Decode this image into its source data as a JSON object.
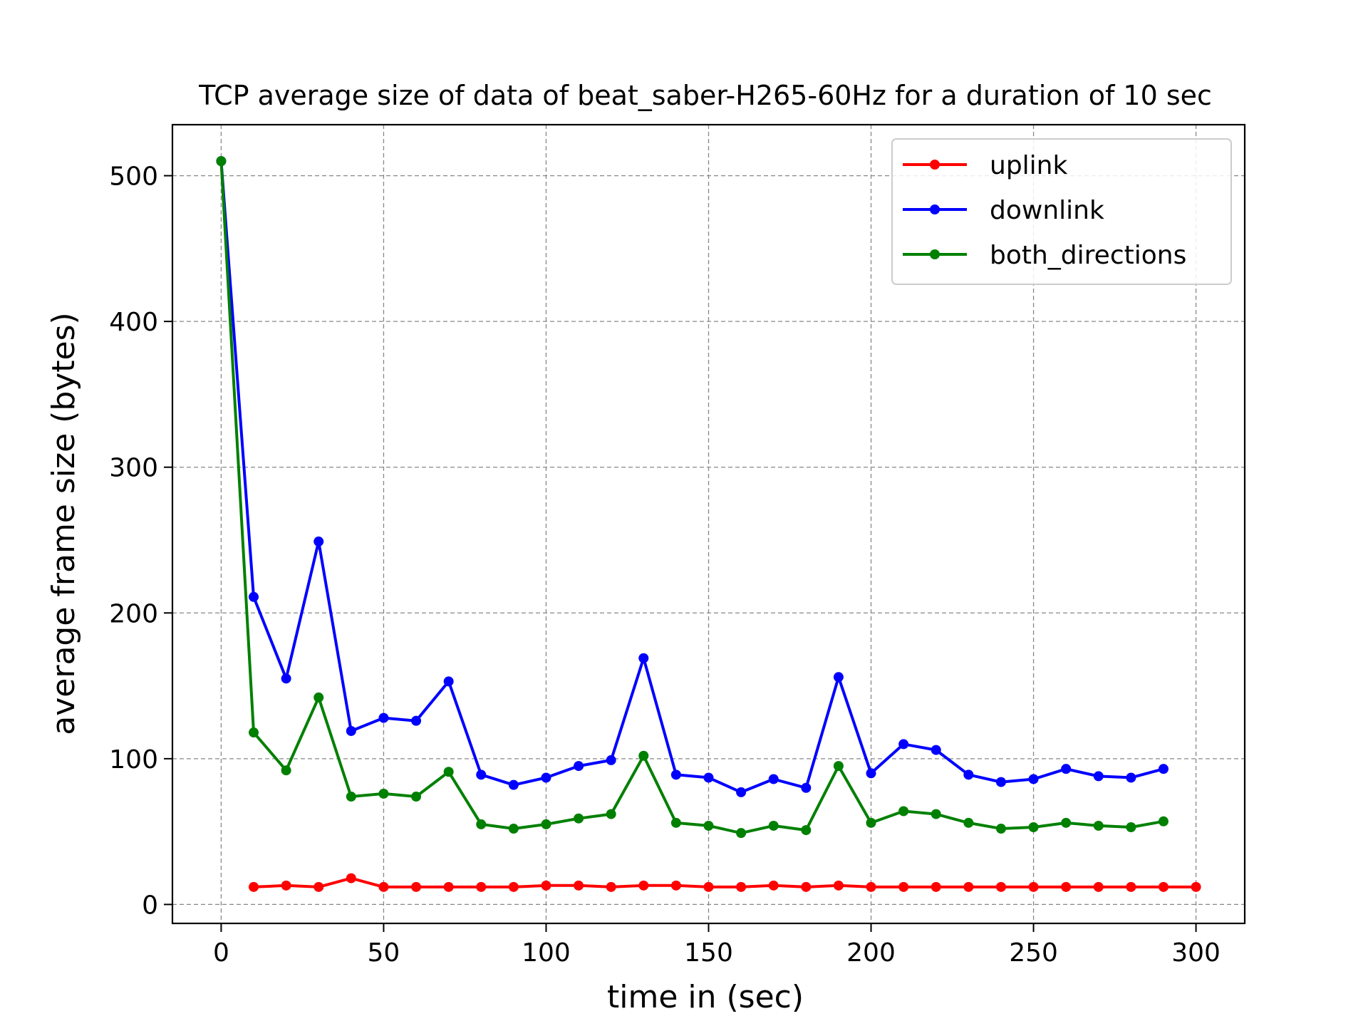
{
  "chart_data": {
    "type": "line",
    "title": "TCP average size of data of beat_saber-H265-60Hz for a duration of 10 sec",
    "xlabel": "time in (sec)",
    "ylabel": "average frame size (bytes)",
    "xlim": [
      -15,
      315
    ],
    "ylim": [
      -13,
      535
    ],
    "xticks": [
      0,
      50,
      100,
      150,
      200,
      250,
      300
    ],
    "yticks": [
      0,
      100,
      200,
      300,
      400,
      500
    ],
    "grid": true,
    "legend_position": "top-right",
    "series": [
      {
        "name": "uplink",
        "color": "#ff0000",
        "x": [
          10,
          20,
          30,
          40,
          50,
          60,
          70,
          80,
          90,
          100,
          110,
          120,
          130,
          140,
          150,
          160,
          170,
          180,
          190,
          200,
          210,
          220,
          230,
          240,
          250,
          260,
          270,
          280,
          290,
          300
        ],
        "values": [
          12,
          13,
          12,
          18,
          12,
          12,
          12,
          12,
          12,
          13,
          13,
          12,
          13,
          13,
          12,
          12,
          13,
          12,
          13,
          12,
          12,
          12,
          12,
          12,
          12,
          12,
          12,
          12,
          12,
          12
        ]
      },
      {
        "name": "downlink",
        "color": "#0000ff",
        "x": [
          0,
          10,
          20,
          30,
          40,
          50,
          60,
          70,
          80,
          90,
          100,
          110,
          120,
          130,
          140,
          150,
          160,
          170,
          180,
          190,
          200,
          210,
          220,
          230,
          240,
          250,
          260,
          270,
          280,
          290
        ],
        "values": [
          510,
          211,
          155,
          249,
          119,
          128,
          126,
          153,
          89,
          82,
          87,
          95,
          99,
          169,
          89,
          87,
          77,
          86,
          80,
          156,
          90,
          110,
          106,
          89,
          84,
          86,
          93,
          88,
          87,
          93
        ]
      },
      {
        "name": "both_directions",
        "color": "#008000",
        "x": [
          0,
          10,
          20,
          30,
          40,
          50,
          60,
          70,
          80,
          90,
          100,
          110,
          120,
          130,
          140,
          150,
          160,
          170,
          180,
          190,
          200,
          210,
          220,
          230,
          240,
          250,
          260,
          270,
          280,
          290
        ],
        "values": [
          510,
          118,
          92,
          142,
          74,
          76,
          74,
          91,
          55,
          52,
          55,
          59,
          62,
          102,
          56,
          54,
          49,
          54,
          51,
          95,
          56,
          64,
          62,
          56,
          52,
          53,
          56,
          54,
          53,
          57
        ]
      }
    ]
  }
}
